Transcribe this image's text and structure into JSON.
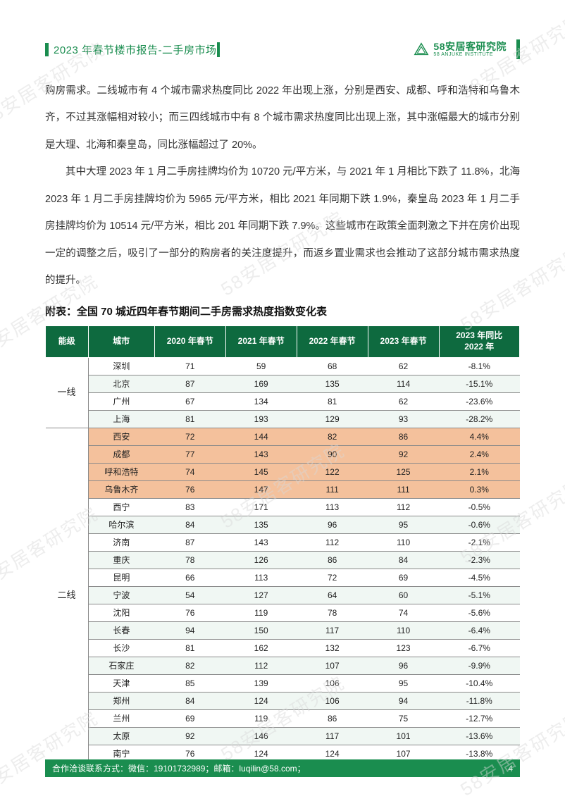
{
  "header": {
    "title": "2023 年春节楼市报告-二手房市场",
    "brand_main": "58安居客研究院",
    "brand_sub": "58 ANJUKE INSTITUTE"
  },
  "watermark": "58安居客研究院",
  "paragraphs": {
    "p1": "购房需求。二线城市有 4 个城市需求热度同比 2022 年出现上涨，分别是西安、成都、呼和浩特和乌鲁木齐，不过其涨幅相对较小；而三四线城市中有 8 个城市需求热度同比出现上涨，其中涨幅最大的城市分别是大理、北海和秦皇岛，同比涨幅超过了 20%。",
    "p2": "其中大理 2023 年 1 月二手房挂牌均价为 10720 元/平方米，与 2021 年 1 月相比下跌了 11.8%，北海 2023 年 1 月二手房挂牌均价为 5965 元/平方米，相比 2021 年同期下跌 1.9%，秦皇岛 2023 年 1 月二手房挂牌均价为 10514 元/平方米，相比 201 年同期下跌 7.9%。这些城市在政策全面刺激之下并在房价出现一定的调整之后，吸引了一部分的购房者的关注度提升，而返乡置业需求也会推动了这部分城市需求热度的提升。"
  },
  "table": {
    "title": "附表：全国 70 城近四年春节期间二手房需求热度指数变化表",
    "columns": [
      "能级",
      "城市",
      "2020 年春节",
      "2021 年春节",
      "2022 年春节",
      "2023 年春节",
      "2023 年同比\n2022 年"
    ],
    "header_bg": "#0e6a3f",
    "header_fg": "#ffffff",
    "alt_bg": "#f0f7f3",
    "hl_bg": "#f4c19c",
    "border_color": "#8a8a8a",
    "tiers": [
      {
        "label": "一线",
        "rows": [
          {
            "city": "深圳",
            "v": [
              "71",
              "59",
              "68",
              "62",
              "-8.1%"
            ],
            "hl": false,
            "alt": false
          },
          {
            "city": "北京",
            "v": [
              "87",
              "169",
              "135",
              "114",
              "-15.1%"
            ],
            "hl": false,
            "alt": true
          },
          {
            "city": "广州",
            "v": [
              "67",
              "134",
              "81",
              "62",
              "-23.6%"
            ],
            "hl": false,
            "alt": false
          },
          {
            "city": "上海",
            "v": [
              "81",
              "193",
              "129",
              "93",
              "-28.2%"
            ],
            "hl": false,
            "alt": true
          }
        ]
      },
      {
        "label": "二线",
        "rows": [
          {
            "city": "西安",
            "v": [
              "72",
              "144",
              "82",
              "86",
              "4.4%"
            ],
            "hl": true,
            "alt": false
          },
          {
            "city": "成都",
            "v": [
              "77",
              "143",
              "90",
              "92",
              "2.4%"
            ],
            "hl": true,
            "alt": false
          },
          {
            "city": "呼和浩特",
            "v": [
              "74",
              "145",
              "122",
              "125",
              "2.1%"
            ],
            "hl": true,
            "alt": false
          },
          {
            "city": "乌鲁木齐",
            "v": [
              "76",
              "147",
              "111",
              "111",
              "0.3%"
            ],
            "hl": true,
            "alt": false
          },
          {
            "city": "西宁",
            "v": [
              "83",
              "171",
              "113",
              "112",
              "-0.5%"
            ],
            "hl": false,
            "alt": false
          },
          {
            "city": "哈尔滨",
            "v": [
              "84",
              "135",
              "96",
              "95",
              "-0.6%"
            ],
            "hl": false,
            "alt": true
          },
          {
            "city": "济南",
            "v": [
              "87",
              "143",
              "112",
              "110",
              "-2.1%"
            ],
            "hl": false,
            "alt": false
          },
          {
            "city": "重庆",
            "v": [
              "78",
              "126",
              "86",
              "84",
              "-2.3%"
            ],
            "hl": false,
            "alt": true
          },
          {
            "city": "昆明",
            "v": [
              "66",
              "113",
              "72",
              "69",
              "-4.5%"
            ],
            "hl": false,
            "alt": false
          },
          {
            "city": "宁波",
            "v": [
              "54",
              "127",
              "64",
              "60",
              "-5.1%"
            ],
            "hl": false,
            "alt": true
          },
          {
            "city": "沈阳",
            "v": [
              "76",
              "119",
              "78",
              "74",
              "-5.6%"
            ],
            "hl": false,
            "alt": false
          },
          {
            "city": "长春",
            "v": [
              "94",
              "150",
              "117",
              "110",
              "-6.4%"
            ],
            "hl": false,
            "alt": true
          },
          {
            "city": "长沙",
            "v": [
              "81",
              "162",
              "132",
              "123",
              "-6.7%"
            ],
            "hl": false,
            "alt": false
          },
          {
            "city": "石家庄",
            "v": [
              "82",
              "112",
              "107",
              "96",
              "-9.9%"
            ],
            "hl": false,
            "alt": true
          },
          {
            "city": "天津",
            "v": [
              "85",
              "139",
              "106",
              "95",
              "-10.4%"
            ],
            "hl": false,
            "alt": false
          },
          {
            "city": "郑州",
            "v": [
              "84",
              "124",
              "106",
              "94",
              "-11.8%"
            ],
            "hl": false,
            "alt": true
          },
          {
            "city": "兰州",
            "v": [
              "69",
              "119",
              "86",
              "75",
              "-12.7%"
            ],
            "hl": false,
            "alt": false
          },
          {
            "city": "太原",
            "v": [
              "92",
              "146",
              "117",
              "101",
              "-13.6%"
            ],
            "hl": false,
            "alt": true
          },
          {
            "city": "南宁",
            "v": [
              "76",
              "124",
              "124",
              "107",
              "-13.8%"
            ],
            "hl": false,
            "alt": false
          }
        ]
      }
    ]
  },
  "footer": {
    "contact": "合作洽谈联系方式：微信：19101732989；邮箱：luqilin@58.com；",
    "page": "4"
  }
}
